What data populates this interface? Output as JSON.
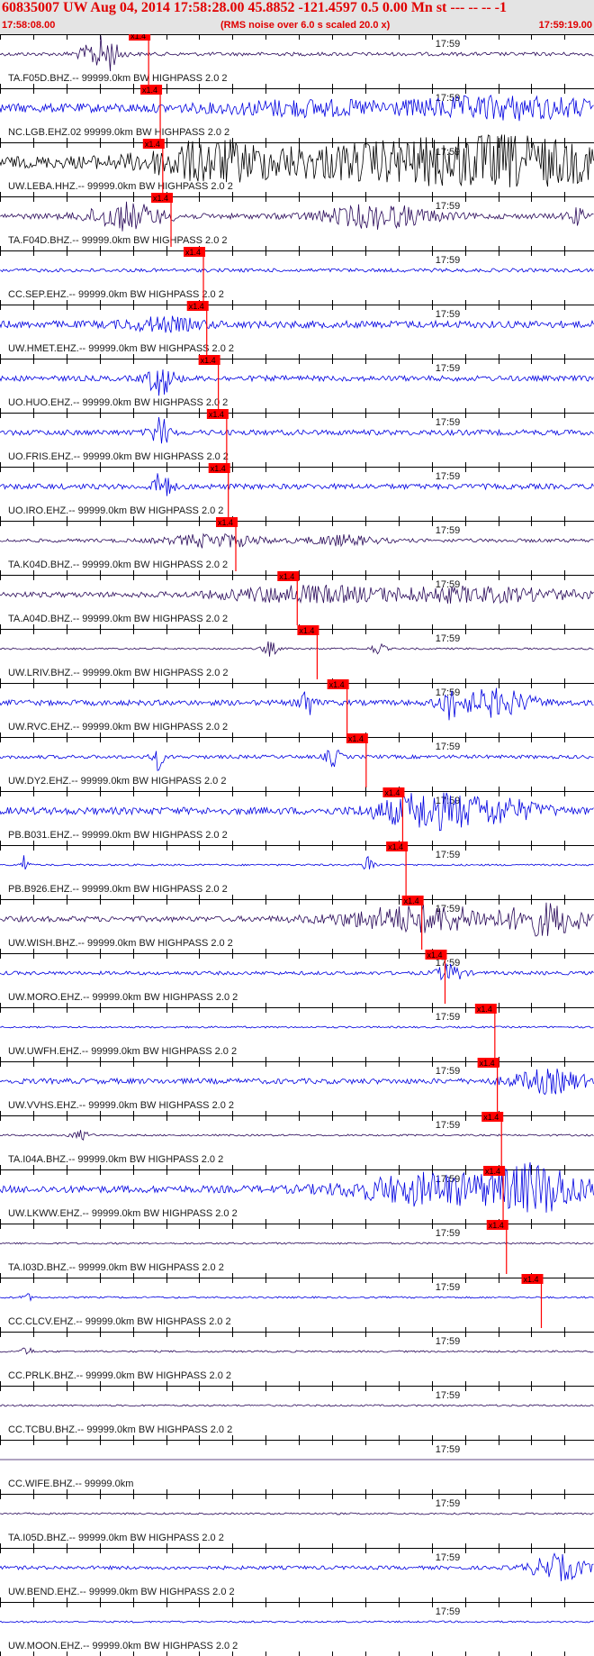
{
  "header": {
    "title": "60835007 UW Aug 04, 2014 17:58:28.00   45.8852 -121.4597  0.5 0.00 Mn st --- -- --  -1",
    "start_time": "17:58:08.00",
    "rms_note": "(RMS noise over 6.0 s scaled 20.0 x)",
    "end_time": "17:59:19.00"
  },
  "colors": {
    "header_text": "#e00000",
    "header_bg": "#e4e4e4",
    "pick": "#ff0000",
    "trace_blue": "#0000e0",
    "trace_dark": "#2a0a5a",
    "trace_black": "#000000"
  },
  "chart_data": {
    "type": "seismogram",
    "x_range": [
      "17:58:08.00",
      "17:59:19.00"
    ],
    "minute_label": "17:59",
    "pick_label": "x1.4",
    "traces": [
      {
        "label": "TA.F05D.BHZ.-- 99999.0km BW  HIGHPASS  2.0  2",
        "pick": 17.9
      },
      {
        "label": "NC.LGB.EHZ.02 99999.0km BW  HIGHPASS  2.0  2",
        "pick": 19.3
      },
      {
        "label": "UW.LEBA.HHZ.-- 99999.0km BW  HIGHPASS  2.0  2",
        "pick": 19.6
      },
      {
        "label": "TA.F04D.BHZ.-- 99999.0km BW  HIGHPASS  2.0  2",
        "pick": 20.6
      },
      {
        "label": "CC.SEP.EHZ.-- 99999.0km BW  HIGHPASS  2.0  2",
        "pick": 24.5
      },
      {
        "label": "UW.HMET.EHZ.-- 99999.0km BW  HIGHPASS  2.0  2",
        "pick": 24.9
      },
      {
        "label": "UO.HUO.EHZ.-- 99999.0km BW  HIGHPASS  2.0  2",
        "pick": 26.3
      },
      {
        "label": "UO.FRIS.EHZ.-- 99999.0km BW  HIGHPASS  2.0  2",
        "pick": 27.3
      },
      {
        "label": "UO.IRO.EHZ.-- 99999.0km BW  HIGHPASS  2.0  2",
        "pick": 27.5
      },
      {
        "label": "TA.K04D.BHZ.-- 99999.0km BW  HIGHPASS  2.0  2",
        "pick": 28.4
      },
      {
        "label": "TA.A04D.BHZ.-- 99999.0km BW  HIGHPASS  2.0  2",
        "pick": 35.8
      },
      {
        "label": "UW.LRIV.BHZ.-- 99999.0km BW  HIGHPASS  2.0  2",
        "pick": 38.2
      },
      {
        "label": "UW.RVC.EHZ.-- 99999.0km BW  HIGHPASS  2.0  2",
        "pick": 41.8
      },
      {
        "label": "UW.DY2.EHZ.-- 99999.0km BW  HIGHPASS  2.0  2",
        "pick": 44.1
      },
      {
        "label": "PB.B031.EHZ.-- 99999.0km BW  HIGHPASS  2.0  2",
        "pick": 48.5
      },
      {
        "label": "PB.B926.EHZ.-- 99999.0km BW  HIGHPASS  2.0  2",
        "pick": 48.9
      },
      {
        "label": "UW.WISH.BHZ.-- 99999.0km BW  HIGHPASS  2.0  2",
        "pick": 50.8
      },
      {
        "label": "UW.MORO.EHZ.-- 99999.0km BW  HIGHPASS  2.0  2",
        "pick": 53.6
      },
      {
        "label": "UW.UWFH.EHZ.-- 99999.0km BW  HIGHPASS  2.0  2",
        "pick": 59.6
      },
      {
        "label": "UW.VVHS.EHZ.-- 99999.0km BW  HIGHPASS  2.0  2",
        "pick": 59.9
      },
      {
        "label": "TA.I04A.BHZ.-- 99999.0km BW  HIGHPASS  2.0  2",
        "pick": 60.4
      },
      {
        "label": "UW.LKWW.EHZ.-- 99999.0km BW  HIGHPASS  2.0  2",
        "pick": 60.6
      },
      {
        "label": "TA.I03D.BHZ.-- 99999.0km BW  HIGHPASS  2.0  2",
        "pick": 61.0
      },
      {
        "label": "CC.CLCV.EHZ.-- 99999.0km BW  HIGHPASS  2.0  2",
        "pick": 65.2
      },
      {
        "label": "CC.PRLK.BHZ.-- 99999.0km BW  HIGHPASS  2.0  2"
      },
      {
        "label": "CC.TCBU.BHZ.-- 99999.0km BW  HIGHPASS  2.0  2"
      },
      {
        "label": "CC.WIFE.BHZ.-- 99999.0km"
      },
      {
        "label": "TA.I05D.BHZ.-- 99999.0km BW  HIGHPASS  2.0  2"
      },
      {
        "label": "UW.BEND.EHZ.-- 99999.0km BW  HIGHPASS  2.0  2"
      },
      {
        "label": "UW.MOON.EHZ.-- 99999.0km BW  HIGHPASS  2.0  2"
      }
    ]
  }
}
